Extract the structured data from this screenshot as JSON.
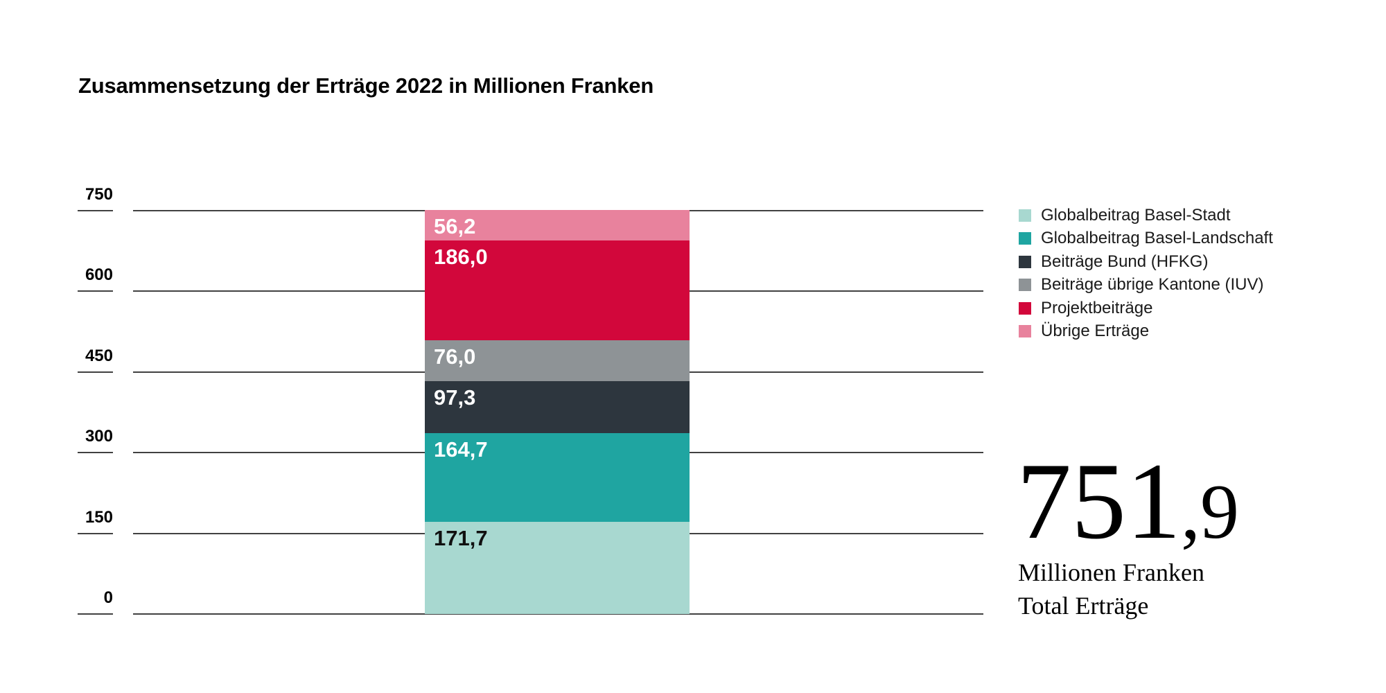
{
  "title": "Zusammensetzung der Erträge 2022 in Millionen Franken",
  "chart_data": {
    "type": "bar",
    "stacked": true,
    "category": "Erträge 2022",
    "unit": "Millionen Franken",
    "y_axis": {
      "min": 0,
      "max": 750,
      "grid": true,
      "ticks": [
        "750",
        "600",
        "450",
        "300",
        "150",
        "0"
      ]
    },
    "segments_top_to_bottom": [
      {
        "name": "Übrige Erträge",
        "value": 56.2,
        "display": "56,2",
        "color": "#E8829D",
        "label_color": "#FFFFFF"
      },
      {
        "name": "Projektbeiträge",
        "value": 186.0,
        "display": "186,0",
        "color": "#D2073B",
        "label_color": "#FFFFFF"
      },
      {
        "name": "Beiträge übrige Kantone (IUV)",
        "value": 76.0,
        "display": "76,0",
        "color": "#8E9396",
        "label_color": "#FFFFFF"
      },
      {
        "name": "Beiträge Bund (HFKG)",
        "value": 97.3,
        "display": "97,3",
        "color": "#2D363E",
        "label_color": "#FFFFFF"
      },
      {
        "name": "Globalbeitrag Basel-Landschaft",
        "value": 164.7,
        "display": "164,7",
        "color": "#1FA5A1",
        "label_color": "#FFFFFF"
      },
      {
        "name": "Globalbeitrag Basel-Stadt",
        "value": 171.7,
        "display": "171,7",
        "color": "#A8D8D0",
        "label_color": "#101010"
      }
    ],
    "total": {
      "value": 751.9,
      "display_int": "751",
      "display_dec": ",9",
      "caption_line1": "Millionen Franken",
      "caption_line2": "Total Erträge"
    }
  },
  "legend": {
    "items": [
      {
        "label": "Globalbeitrag Basel-Stadt",
        "color": "#A8D8D0"
      },
      {
        "label": "Globalbeitrag Basel-Landschaft",
        "color": "#1FA5A1"
      },
      {
        "label": "Beiträge Bund (HFKG)",
        "color": "#2D363E"
      },
      {
        "label": "Beiträge übrige Kantone (IUV)",
        "color": "#8E9396"
      },
      {
        "label": "Projektbeiträge",
        "color": "#D2073B"
      },
      {
        "label": "Übrige Erträge",
        "color": "#E8829D"
      }
    ]
  }
}
